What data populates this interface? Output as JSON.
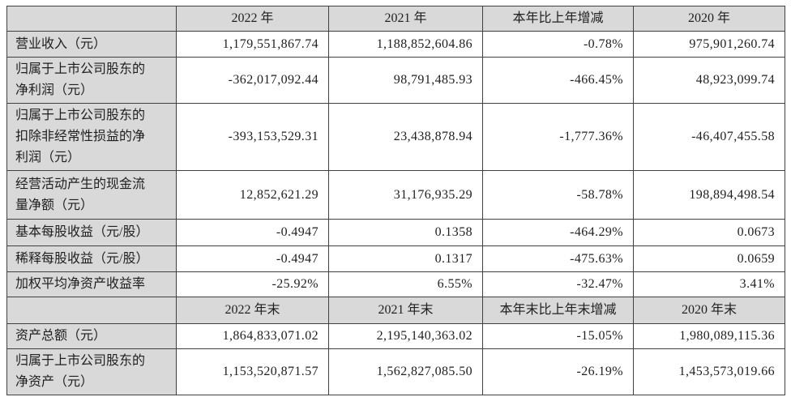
{
  "table": {
    "colors": {
      "header_bg": "#d9d9d9",
      "label_bg": "#d9d9d9",
      "border": "#404040",
      "text": "#1f1f1f"
    },
    "header_row_1": {
      "label": "",
      "cols": [
        "2022 年",
        "2021 年",
        "本年比上年增减",
        "2020 年"
      ]
    },
    "rows_1": [
      {
        "label": "营业收入（元）",
        "values": [
          "1,179,551,867.74",
          "1,188,852,604.86",
          "-0.78%",
          "975,901,260.74"
        ]
      },
      {
        "label": "归属于上市公司股东的净利润（元）",
        "values": [
          "-362,017,092.44",
          "98,791,485.93",
          "-466.45%",
          "48,923,099.74"
        ]
      },
      {
        "label": "归属于上市公司股东的扣除非经常性损益的净利润（元）",
        "values": [
          "-393,153,529.31",
          "23,438,878.94",
          "-1,777.36%",
          "-46,407,455.58"
        ]
      },
      {
        "label": "经营活动产生的现金流量净额（元）",
        "values": [
          "12,852,621.29",
          "31,176,935.29",
          "-58.78%",
          "198,894,498.54"
        ]
      },
      {
        "label": "基本每股收益（元/股）",
        "values": [
          "-0.4947",
          "0.1358",
          "-464.29%",
          "0.0673"
        ]
      },
      {
        "label": "稀释每股收益（元/股）",
        "values": [
          "-0.4947",
          "0.1317",
          "-475.63%",
          "0.0659"
        ]
      },
      {
        "label": "加权平均净资产收益率",
        "values": [
          "-25.92%",
          "6.55%",
          "-32.47%",
          "3.41%"
        ]
      }
    ],
    "header_row_2": {
      "label": "",
      "cols": [
        "2022 年末",
        "2021 年末",
        "本年末比上年末增减",
        "2020 年末"
      ]
    },
    "rows_2": [
      {
        "label": "资产总额（元）",
        "values": [
          "1,864,833,071.02",
          "2,195,140,363.02",
          "-15.05%",
          "1,980,089,115.36"
        ]
      },
      {
        "label": "归属于上市公司股东的净资产（元）",
        "values": [
          "1,153,520,871.57",
          "1,562,827,085.50",
          "-26.19%",
          "1,453,573,019.66"
        ]
      }
    ]
  }
}
